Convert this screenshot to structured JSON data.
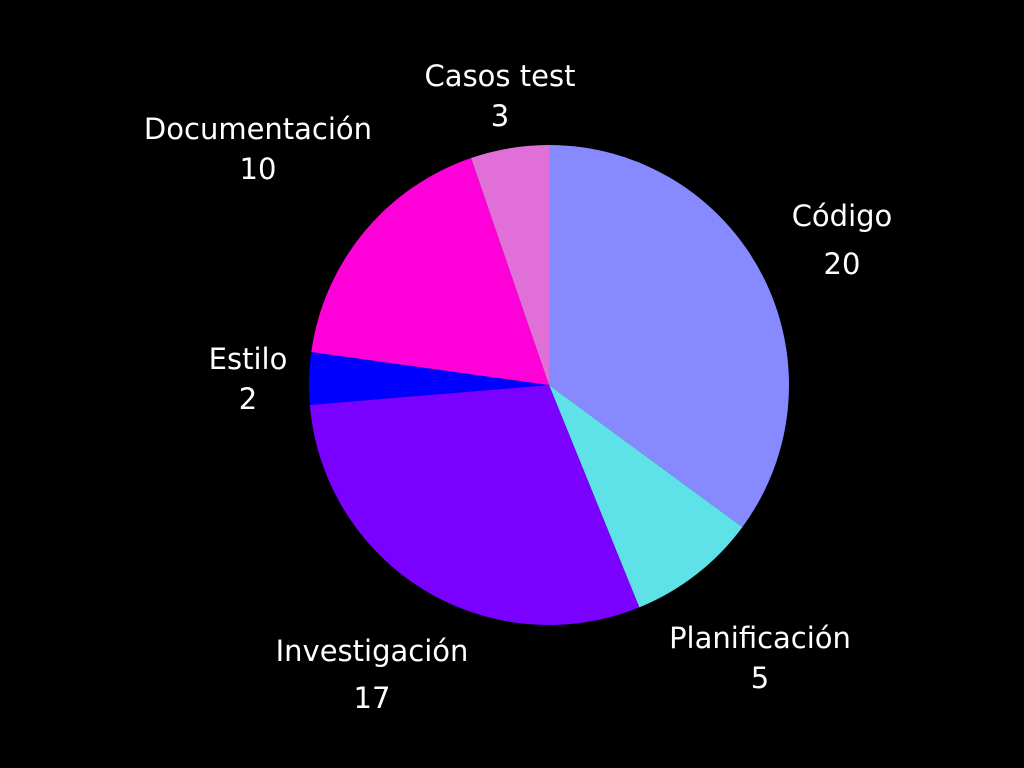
{
  "chart_data": {
    "type": "pie",
    "slices": [
      {
        "label": "Código",
        "value": 20,
        "color": "#8789ff"
      },
      {
        "label": "Planificación",
        "value": 5,
        "color": "#5ee2e8"
      },
      {
        "label": "Investigación",
        "value": 17,
        "color": "#7a00ff"
      },
      {
        "label": "Estilo",
        "value": 2,
        "color": "#0000ff"
      },
      {
        "label": "Documentación",
        "value": 10,
        "color": "#ff00d8"
      },
      {
        "label": "Casos test",
        "value": 3,
        "color": "#e070d8"
      }
    ],
    "start_angle_deg": 0,
    "direction": "clockwise",
    "background": "#000000",
    "label_color": "#ffffff"
  }
}
